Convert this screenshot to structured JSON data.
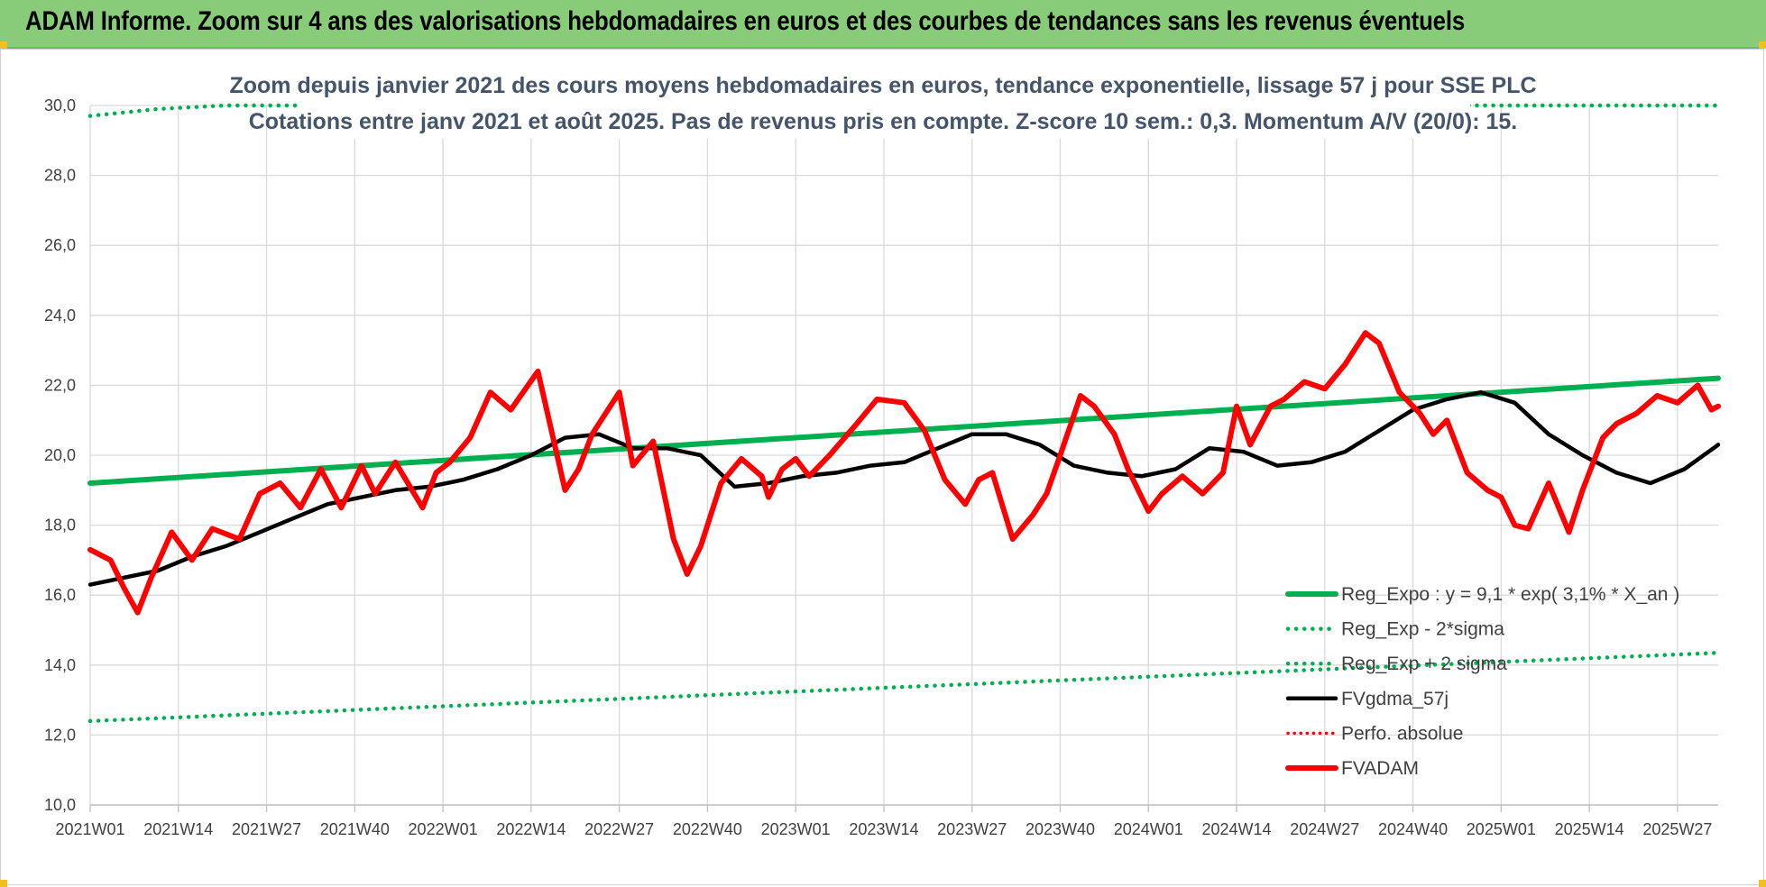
{
  "header": {
    "title": "ADAM Informe. Zoom sur 4 ans des valorisations hebdomadaires en euros et des courbes de tendances sans les revenus éventuels"
  },
  "colors": {
    "header_bg": "#88cc7a",
    "reg_expo": "#00b050",
    "fvgdma": "#000000",
    "fvadam": "#ff0000",
    "perfo": "#ff0000",
    "subtitle": "#44546a"
  },
  "chart_data": {
    "type": "line",
    "title_lines": [
      "Zoom depuis janvier 2021 des cours moyens hebdomadaires en euros, tendance exponentielle, lissage 57 j pour SSE PLC",
      "Cotations entre janv 2021 et août 2025.  Pas de revenus pris en compte. Z-score 10 sem.: 0,3. Momentum A/V (20/0): 15."
    ],
    "ylim": [
      10,
      30
    ],
    "y_ticks": [
      "10,0",
      "12,0",
      "14,0",
      "16,0",
      "18,0",
      "20,0",
      "22,0",
      "24,0",
      "26,0",
      "28,0",
      "30,0"
    ],
    "x_tick_labels": [
      "2021W01",
      "2021W14",
      "2021W27",
      "2021W40",
      "2022W01",
      "2022W14",
      "2022W27",
      "2022W40",
      "2023W01",
      "2023W14",
      "2023W27",
      "2023W40",
      "2024W01",
      "2024W14",
      "2024W27",
      "2024W40",
      "2025W01",
      "2025W14",
      "2025W27"
    ],
    "grid": true,
    "legend_position": "bottom-right",
    "legend": [
      {
        "label": "Reg_Expo : y = 9,1 * exp( 3,1% *  X_an )",
        "style": "solid-green"
      },
      {
        "label": "Reg_Exp - 2*sigma",
        "style": "dotted-green"
      },
      {
        "label": "Reg_Exp + 2 sigma",
        "style": "dotted-green"
      },
      {
        "label": "FVgdma_57j",
        "style": "solid-black"
      },
      {
        "label": "Perfo. absolue",
        "style": "dotted-red"
      },
      {
        "label": "FVADAM",
        "style": "solid-red"
      }
    ],
    "series": [
      {
        "name": "Reg_Expo : y = 9,1 * exp( 3,1% *  X_an )",
        "x": [
          0,
          240
        ],
        "values": [
          19.2,
          22.2
        ]
      },
      {
        "name": "Reg_Exp - 2*sigma",
        "x": [
          0,
          240
        ],
        "values": [
          12.4,
          14.35
        ]
      },
      {
        "name": "Reg_Exp + 2 sigma",
        "x": [
          0,
          10,
          20,
          30,
          240
        ],
        "values": [
          29.7,
          29.9,
          30.0,
          30.0,
          30.0
        ]
      },
      {
        "name": "FVgdma_57j",
        "x": [
          0,
          5,
          10,
          15,
          20,
          25,
          30,
          35,
          40,
          45,
          50,
          55,
          60,
          65,
          70,
          75,
          80,
          85,
          90,
          95,
          100,
          105,
          110,
          115,
          120,
          125,
          130,
          135,
          140,
          145,
          150,
          155,
          160,
          165,
          170,
          175,
          180,
          185,
          190,
          195,
          200,
          205,
          210,
          215,
          220,
          225,
          230,
          235,
          240
        ],
        "values": [
          16.3,
          16.5,
          16.7,
          17.1,
          17.4,
          17.8,
          18.2,
          18.6,
          18.8,
          19.0,
          19.1,
          19.3,
          19.6,
          20.0,
          20.5,
          20.6,
          20.2,
          20.2,
          20.0,
          19.1,
          19.2,
          19.4,
          19.5,
          19.7,
          19.8,
          20.2,
          20.6,
          20.6,
          20.3,
          19.7,
          19.5,
          19.4,
          19.6,
          20.2,
          20.1,
          19.7,
          19.8,
          20.1,
          20.7,
          21.3,
          21.6,
          21.8,
          21.5,
          20.6,
          20.0,
          19.5,
          19.2,
          19.6,
          20.3
        ]
      },
      {
        "name": "FVADAM",
        "x": [
          0,
          3,
          5,
          7,
          9,
          12,
          15,
          18,
          22,
          25,
          28,
          31,
          34,
          37,
          40,
          42,
          45,
          49,
          51,
          53,
          56,
          59,
          62,
          66,
          70,
          72,
          74,
          76,
          78,
          80,
          83,
          86,
          88,
          90,
          93,
          96,
          99,
          100,
          102,
          104,
          106,
          109,
          113,
          116,
          120,
          123,
          126,
          129,
          131,
          133,
          136,
          139,
          141,
          143,
          146,
          148,
          151,
          153,
          156,
          158,
          161,
          164,
          167,
          169,
          171,
          174,
          176,
          179,
          182,
          185,
          188,
          190,
          193,
          196,
          198,
          200,
          203,
          206,
          208,
          210,
          212,
          215,
          218,
          220,
          223,
          225,
          228,
          231,
          234,
          237,
          239,
          240
        ],
        "values": [
          17.3,
          17.0,
          16.2,
          15.5,
          16.5,
          17.8,
          17.0,
          17.9,
          17.6,
          18.9,
          19.2,
          18.5,
          19.6,
          18.5,
          19.7,
          18.9,
          19.8,
          18.5,
          19.5,
          19.8,
          20.5,
          21.8,
          21.3,
          22.4,
          19.0,
          19.6,
          20.6,
          21.2,
          21.8,
          19.7,
          20.4,
          17.6,
          16.6,
          17.4,
          19.2,
          19.9,
          19.4,
          18.8,
          19.6,
          19.9,
          19.4,
          20.0,
          20.9,
          21.6,
          21.5,
          20.7,
          19.3,
          18.6,
          19.3,
          19.5,
          17.6,
          18.3,
          18.9,
          20.0,
          21.7,
          21.4,
          20.6,
          19.6,
          18.4,
          18.9,
          19.4,
          18.9,
          19.5,
          21.4,
          20.3,
          21.4,
          21.6,
          22.1,
          21.9,
          22.6,
          23.5,
          23.2,
          21.8,
          21.2,
          20.6,
          21.0,
          19.5,
          19.0,
          18.8,
          18.0,
          17.9,
          19.2,
          17.8,
          19.0,
          20.5,
          20.9,
          21.2,
          21.7,
          21.5,
          22.0,
          21.3,
          21.4
        ]
      }
    ]
  }
}
